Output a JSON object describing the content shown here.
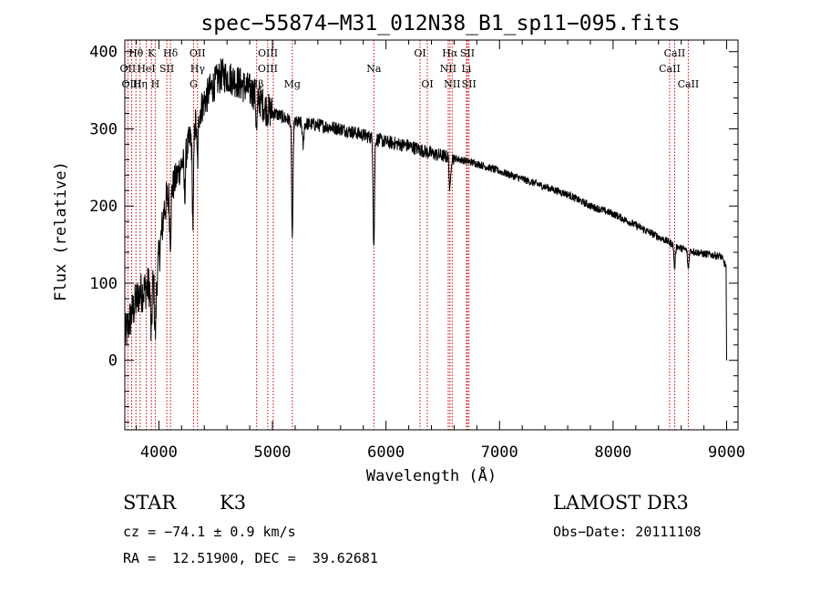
{
  "chart_data": {
    "type": "line",
    "title": "spec−55874−M31_012N38_B1_sp11−095.fits",
    "xlabel": "Wavelength (Å)",
    "ylabel": "Flux (relative)",
    "xlim": [
      3700,
      9100
    ],
    "ylim": [
      -90,
      415
    ],
    "x_ticks": [
      4000,
      5000,
      6000,
      7000,
      8000,
      9000
    ],
    "y_ticks": [
      0,
      100,
      200,
      300,
      400
    ],
    "grid": false,
    "series": [
      {
        "name": "flux",
        "color": "#000000",
        "continuum": [
          [
            3700,
            30
          ],
          [
            3760,
            60
          ],
          [
            3820,
            85
          ],
          [
            3900,
            95
          ],
          [
            3980,
            105
          ],
          [
            4050,
            200
          ],
          [
            4150,
            235
          ],
          [
            4250,
            275
          ],
          [
            4350,
            320
          ],
          [
            4450,
            350
          ],
          [
            4550,
            370
          ],
          [
            4650,
            365
          ],
          [
            4750,
            355
          ],
          [
            4850,
            345
          ],
          [
            4950,
            325
          ],
          [
            5050,
            318
          ],
          [
            5200,
            308
          ],
          [
            5400,
            305
          ],
          [
            5600,
            300
          ],
          [
            5800,
            292
          ],
          [
            6000,
            283
          ],
          [
            6200,
            278
          ],
          [
            6400,
            268
          ],
          [
            6600,
            262
          ],
          [
            6800,
            255
          ],
          [
            7000,
            245
          ],
          [
            7200,
            235
          ],
          [
            7400,
            225
          ],
          [
            7600,
            215
          ],
          [
            7800,
            200
          ],
          [
            8000,
            190
          ],
          [
            8200,
            175
          ],
          [
            8400,
            160
          ],
          [
            8600,
            145
          ],
          [
            8800,
            138
          ],
          [
            8950,
            135
          ],
          [
            9000,
            120
          ]
        ],
        "absorption_dips": [
          [
            3933,
            70
          ],
          [
            3968,
            70
          ],
          [
            4101,
            60
          ],
          [
            4227,
            50
          ],
          [
            4300,
            120
          ],
          [
            4340,
            60
          ],
          [
            4861,
            45
          ],
          [
            5175,
            150
          ],
          [
            5270,
            30
          ],
          [
            5893,
            140
          ],
          [
            6563,
            45
          ],
          [
            8542,
            30
          ],
          [
            8662,
            25
          ]
        ],
        "end_drop": [
          9000,
          0
        ]
      }
    ],
    "line_markers": [
      {
        "label": "Hθ",
        "wavelength": 3798,
        "row": 1
      },
      {
        "label": "K",
        "wavelength": 3934,
        "row": 1
      },
      {
        "label": "Hδ",
        "wavelength": 4102,
        "row": 1
      },
      {
        "label": "OII",
        "wavelength": 4340,
        "row": 1
      },
      {
        "label": "OIII",
        "wavelength": 4960,
        "row": 1
      },
      {
        "label": "OI",
        "wavelength": 6300,
        "row": 1
      },
      {
        "label": "Hα",
        "wavelength": 6563,
        "row": 1
      },
      {
        "label": "SII",
        "wavelength": 6717,
        "row": 1
      },
      {
        "label": "CaII",
        "wavelength": 8542,
        "row": 1
      },
      {
        "label": "OII",
        "wavelength": 3727,
        "row": 2
      },
      {
        "label": "HeI",
        "wavelength": 3889,
        "row": 2
      },
      {
        "label": "SII",
        "wavelength": 4070,
        "row": 2
      },
      {
        "label": "Hγ",
        "wavelength": 4341,
        "row": 2
      },
      {
        "label": "OIII",
        "wavelength": 4959,
        "row": 2
      },
      {
        "label": "Na",
        "wavelength": 5893,
        "row": 2
      },
      {
        "label": "NII",
        "wavelength": 6548,
        "row": 2
      },
      {
        "label": "Li",
        "wavelength": 6708,
        "row": 2
      },
      {
        "label": "CaII",
        "wavelength": 8498,
        "row": 2
      },
      {
        "label": "OIII",
        "wavelength": 3760,
        "row": 3
      },
      {
        "label": "Hη",
        "wavelength": 3835,
        "row": 3
      },
      {
        "label": "H",
        "wavelength": 3968,
        "row": 3
      },
      {
        "label": "G",
        "wavelength": 4305,
        "row": 3
      },
      {
        "label": "Hβ",
        "wavelength": 4861,
        "row": 3
      },
      {
        "label": "Mg",
        "wavelength": 5175,
        "row": 3
      },
      {
        "label": "OI",
        "wavelength": 6364,
        "row": 3
      },
      {
        "label": "NII",
        "wavelength": 6583,
        "row": 3
      },
      {
        "label": "SII",
        "wavelength": 6731,
        "row": 3
      },
      {
        "label": "CaII",
        "wavelength": 8662,
        "row": 3
      }
    ],
    "marker_lines_at": [
      3727,
      3760,
      3798,
      3835,
      3889,
      3934,
      3968,
      4070,
      4102,
      4305,
      4340,
      4861,
      4959,
      5007,
      5175,
      5893,
      6300,
      6364,
      6548,
      6563,
      6583,
      6708,
      6717,
      6731,
      8498,
      8542,
      8662
    ],
    "marker_color": "#cc0000"
  },
  "info": {
    "object_class": "STAR",
    "subclass": "K3",
    "survey": "LAMOST DR3",
    "redshift_line": "cz = −74.1 ± 0.9 km/s",
    "obs_date_line": "Obs−Date: 20111108",
    "coords_line": "RA =  12.51900, DEC =  39.62681"
  }
}
